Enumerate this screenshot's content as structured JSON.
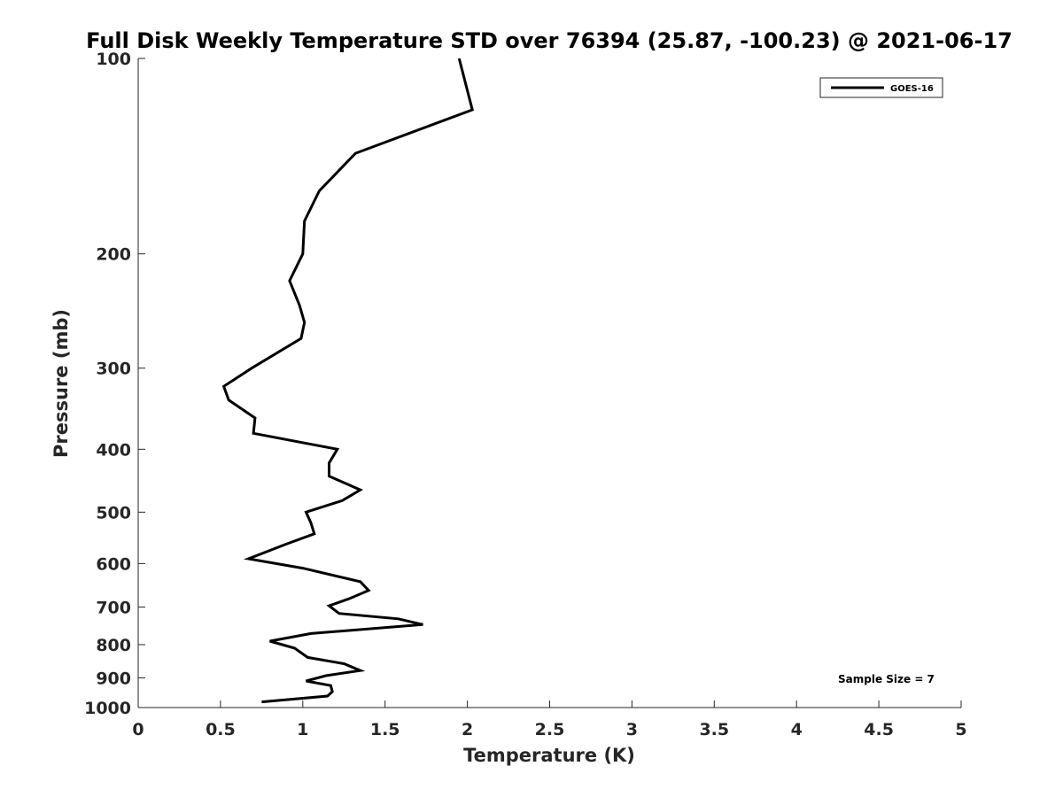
{
  "chart_data": {
    "type": "line",
    "title": "Full Disk Weekly Temperature STD over 76394 (25.87, -100.23) @ 2021-06-17",
    "xlabel": "Temperature (K)",
    "ylabel": "Pressure (mb)",
    "xlim": [
      0,
      5
    ],
    "ylim": [
      100,
      1000
    ],
    "yscale": "log",
    "yreversed": true,
    "xticks": [
      0,
      0.5,
      1,
      1.5,
      2,
      2.5,
      3,
      3.5,
      4,
      4.5,
      5
    ],
    "xtick_labels": [
      "0",
      "0.5",
      "1",
      "1.5",
      "2",
      "2.5",
      "3",
      "3.5",
      "4",
      "4.5",
      "5"
    ],
    "yticks": [
      100,
      200,
      300,
      400,
      500,
      600,
      700,
      800,
      900,
      1000
    ],
    "ytick_labels": [
      "100",
      "200",
      "300",
      "400",
      "500",
      "600",
      "700",
      "800",
      "900",
      "1000"
    ],
    "legend": {
      "position": "top-right",
      "entries": [
        "GOES-16"
      ]
    },
    "annotation": "Sample Size = 7",
    "series": [
      {
        "name": "GOES-16",
        "color": "#000000",
        "points": [
          [
            1.95,
            100
          ],
          [
            2.03,
            120
          ],
          [
            1.32,
            140
          ],
          [
            1.1,
            160
          ],
          [
            1.01,
            178
          ],
          [
            1.0,
            200
          ],
          [
            0.92,
            220
          ],
          [
            0.98,
            240
          ],
          [
            1.01,
            255
          ],
          [
            0.99,
            270
          ],
          [
            0.69,
            300
          ],
          [
            0.52,
            320
          ],
          [
            0.55,
            336
          ],
          [
            0.71,
            358
          ],
          [
            0.7,
            378
          ],
          [
            1.21,
            400
          ],
          [
            1.16,
            420
          ],
          [
            1.16,
            440
          ],
          [
            1.35,
            462
          ],
          [
            1.24,
            480
          ],
          [
            1.02,
            500
          ],
          [
            1.05,
            520
          ],
          [
            1.07,
            540
          ],
          [
            0.9,
            560
          ],
          [
            0.67,
            590
          ],
          [
            1.0,
            610
          ],
          [
            1.35,
            640
          ],
          [
            1.4,
            660
          ],
          [
            1.28,
            680
          ],
          [
            1.16,
            697
          ],
          [
            1.22,
            716
          ],
          [
            1.58,
            730
          ],
          [
            1.73,
            745
          ],
          [
            1.05,
            769
          ],
          [
            0.8,
            790
          ],
          [
            0.95,
            810
          ],
          [
            1.03,
            837
          ],
          [
            1.25,
            856
          ],
          [
            1.35,
            877
          ],
          [
            1.14,
            893
          ],
          [
            1.02,
            910
          ],
          [
            1.17,
            925
          ],
          [
            1.18,
            945
          ],
          [
            1.15,
            960
          ],
          [
            0.75,
            980
          ]
        ]
      }
    ]
  }
}
